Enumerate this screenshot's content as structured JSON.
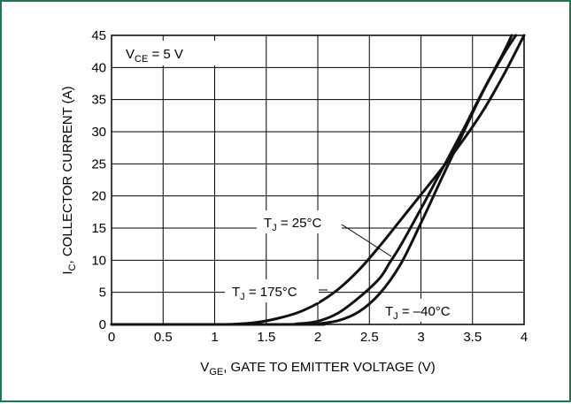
{
  "chart_data": {
    "type": "line",
    "xlabel": {
      "main": "V",
      "sub": "GE",
      "rest": ", GATE TO EMITTER VOLTAGE (V)"
    },
    "ylabel": {
      "main": "I",
      "sub": "C",
      "rest": ", COLLECTOR CURRENT (A)"
    },
    "xlim": [
      0,
      4
    ],
    "ylim": [
      0,
      45
    ],
    "x_ticks": [
      0,
      0.5,
      1,
      1.5,
      2,
      2.5,
      3,
      3.5,
      4
    ],
    "y_ticks": [
      0,
      5,
      10,
      15,
      20,
      25,
      30,
      35,
      40,
      45
    ],
    "grid": true,
    "condition": {
      "main": "V",
      "sub": "CE",
      "rest": " = 5 V"
    },
    "series": [
      {
        "name": "T_J = 175°C",
        "label": {
          "main": "T",
          "sub": "J",
          "rest": " = 175°C"
        },
        "x": [
          0,
          1.0,
          1.2,
          1.4,
          1.6,
          1.8,
          2.0,
          2.2,
          2.4,
          2.6,
          2.8,
          3.0,
          3.2,
          3.4,
          3.6,
          3.8,
          4.0
        ],
        "y": [
          0,
          0,
          0.05,
          0.3,
          0.9,
          1.8,
          3.3,
          5.5,
          8.5,
          12.2,
          16.2,
          20.2,
          24.2,
          28.5,
          33.2,
          38.8,
          45
        ]
      },
      {
        "name": "T_J = 25°C",
        "label": {
          "main": "T",
          "sub": "J",
          "rest": " = 25°C"
        },
        "x": [
          0,
          1.6,
          1.8,
          2.0,
          2.2,
          2.4,
          2.6,
          2.7,
          2.8,
          3.0,
          3.2,
          3.4,
          3.6,
          3.8,
          3.88
        ],
        "y": [
          0,
          0,
          0.1,
          0.5,
          1.8,
          4.2,
          7.2,
          9.7,
          12.2,
          18.0,
          24.0,
          30.0,
          36.3,
          42.3,
          45
        ]
      },
      {
        "name": "T_J = –40°C",
        "label": {
          "main": "T",
          "sub": "J",
          "rest": " = –40°C"
        },
        "x": [
          0,
          1.9,
          2.0,
          2.2,
          2.4,
          2.6,
          2.8,
          3.0,
          3.2,
          3.4,
          3.6,
          3.8,
          3.92
        ],
        "y": [
          0,
          0,
          0.1,
          0.6,
          2.0,
          4.8,
          9.3,
          15.8,
          22.7,
          29.5,
          36.2,
          42.0,
          45
        ]
      }
    ]
  }
}
